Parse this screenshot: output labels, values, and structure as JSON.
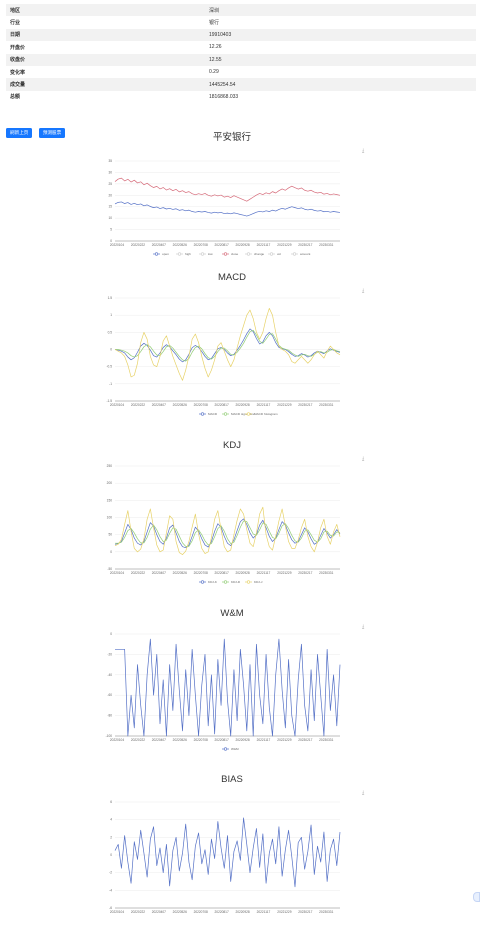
{
  "info": {
    "rows": [
      {
        "key": "地区",
        "value": "深圳"
      },
      {
        "key": "行业",
        "value": "银行"
      },
      {
        "key": "日期",
        "value": "19910403"
      },
      {
        "key": "开盘价",
        "value": "12.26"
      },
      {
        "key": "收盘价",
        "value": "12.55"
      },
      {
        "key": "变化率",
        "value": "0.29"
      },
      {
        "key": "成交量",
        "value": "1445254.54"
      },
      {
        "key": "总额",
        "value": "1816868.033"
      }
    ]
  },
  "buttons": {
    "left": "刷新上页",
    "right": "预测股票"
  },
  "toolbox_icon": "download-icon",
  "colors": {
    "blue": "#5470c6",
    "red": "#d66b7a",
    "yellow": "#e7d269",
    "green": "#91cc75",
    "orange": "#f2b65a",
    "button": "#1677ff"
  },
  "x_ticks": [
    "20220104",
    "20220222",
    "20220407",
    "20220526",
    "20220708",
    "20220817",
    "20220928",
    "20221117",
    "20221229",
    "20230217",
    "20230331"
  ],
  "chart_data": [
    {
      "type": "line",
      "title": "平安银行",
      "ylim": [
        0,
        35
      ],
      "yticks": [
        "0",
        "5",
        "10",
        "15",
        "20",
        "25",
        "30",
        "35"
      ],
      "series": [
        {
          "name": "open",
          "color": "#5470c6",
          "values": [
            16.2,
            16.9,
            17.1,
            16.4,
            16.8,
            16.0,
            16.5,
            15.9,
            16.2,
            15.4,
            15.8,
            15.1,
            14.6,
            14.9,
            14.2,
            14.6,
            14.0,
            14.3,
            13.8,
            14.1,
            13.4,
            13.7,
            13.2,
            13.5,
            12.9,
            12.6,
            12.9,
            12.7,
            12.9,
            12.5,
            12.2,
            12.6,
            12.3,
            12.5,
            12.0,
            12.2,
            11.9,
            12.3,
            12.0,
            11.6,
            11.3,
            10.9,
            11.4,
            12.0,
            12.6,
            13.0,
            12.7,
            13.2,
            12.9,
            13.5,
            13.1,
            13.8,
            14.3,
            13.9,
            14.5,
            15.0,
            14.6,
            14.2,
            14.5,
            13.9,
            13.6,
            13.9,
            13.4,
            13.1,
            13.3,
            12.8,
            13.0,
            12.6,
            12.9,
            12.7,
            12.5
          ]
        },
        {
          "name": "high",
          "color": "#91cc75",
          "values": []
        },
        {
          "name": "low",
          "color": "#e7d269",
          "values": []
        },
        {
          "name": "close",
          "color": "#d66b7a",
          "values": [
            26.0,
            27.1,
            27.5,
            26.3,
            27.0,
            25.8,
            26.6,
            25.4,
            25.9,
            24.6,
            25.3,
            24.2,
            23.4,
            23.9,
            22.8,
            23.4,
            22.3,
            22.9,
            22.0,
            22.6,
            21.5,
            22.0,
            21.2,
            21.6,
            20.7,
            20.2,
            20.7,
            20.3,
            20.8,
            20.0,
            19.6,
            20.2,
            19.7,
            20.1,
            19.2,
            19.6,
            19.0,
            19.8,
            19.2,
            18.6,
            18.0,
            17.4,
            18.3,
            19.2,
            20.1,
            20.8,
            20.3,
            21.1,
            20.6,
            21.6,
            21.0,
            22.0,
            22.8,
            22.2,
            23.2,
            24.0,
            23.3,
            22.7,
            23.2,
            22.2,
            21.8,
            22.2,
            21.4,
            21.0,
            21.3,
            20.5,
            20.8,
            20.2,
            20.6,
            20.3,
            20.0
          ]
        },
        {
          "name": "change",
          "color": "#73c0de",
          "values": []
        },
        {
          "name": "vol",
          "color": "#3ba272",
          "values": []
        },
        {
          "name": "amount",
          "color": "#fc8452",
          "values": []
        }
      ]
    },
    {
      "type": "line",
      "title": "MACD",
      "ylim": [
        -1.5,
        1.5
      ],
      "yticks": [
        "-1.5",
        "-1",
        "-0.5",
        "0",
        "0.5",
        "1",
        "1.5"
      ],
      "series": [
        {
          "name": "MACD",
          "color": "#5470c6",
          "values": [
            0,
            -0.02,
            -0.05,
            -0.1,
            -0.22,
            -0.3,
            -0.24,
            -0.08,
            0.1,
            0.18,
            0.12,
            -0.02,
            -0.18,
            -0.22,
            -0.1,
            0.06,
            0.14,
            0.08,
            -0.04,
            -0.15,
            -0.28,
            -0.36,
            -0.3,
            -0.14,
            0.05,
            0.12,
            0.06,
            -0.06,
            -0.2,
            -0.3,
            -0.26,
            -0.12,
            0.02,
            0.06,
            0.0,
            -0.1,
            -0.18,
            -0.14,
            -0.02,
            0.12,
            0.28,
            0.46,
            0.6,
            0.52,
            0.32,
            0.16,
            0.22,
            0.4,
            0.5,
            0.4,
            0.2,
            0.06,
            0.02,
            0.0,
            -0.06,
            -0.14,
            -0.2,
            -0.18,
            -0.12,
            -0.16,
            -0.22,
            -0.18,
            -0.1,
            -0.05,
            -0.08,
            -0.12,
            -0.04,
            0.02,
            -0.02,
            -0.06,
            -0.08
          ]
        },
        {
          "name": "MACD signal line",
          "color": "#91cc75",
          "values": [
            0,
            0,
            -0.02,
            -0.05,
            -0.1,
            -0.18,
            -0.22,
            -0.18,
            -0.06,
            0.08,
            0.14,
            0.08,
            -0.05,
            -0.16,
            -0.18,
            -0.06,
            0.08,
            0.12,
            0.04,
            -0.08,
            -0.2,
            -0.3,
            -0.34,
            -0.26,
            -0.08,
            0.06,
            0.1,
            0.02,
            -0.12,
            -0.24,
            -0.28,
            -0.2,
            -0.06,
            0.04,
            0.04,
            -0.04,
            -0.14,
            -0.16,
            -0.08,
            0.04,
            0.18,
            0.36,
            0.52,
            0.56,
            0.42,
            0.24,
            0.18,
            0.3,
            0.44,
            0.46,
            0.3,
            0.12,
            0.04,
            0.01,
            -0.02,
            -0.1,
            -0.16,
            -0.2,
            -0.16,
            -0.14,
            -0.18,
            -0.2,
            -0.14,
            -0.08,
            -0.06,
            -0.1,
            -0.08,
            -0.02,
            0.0,
            -0.04,
            -0.06
          ]
        },
        {
          "name": "MACD histogram",
          "color": "#e7d269",
          "values": [
            0,
            -0.05,
            -0.1,
            -0.2,
            -0.45,
            -0.8,
            -0.75,
            -0.4,
            0.2,
            0.5,
            0.3,
            -0.2,
            -0.45,
            -0.5,
            -0.2,
            0.25,
            0.4,
            0.1,
            -0.2,
            -0.45,
            -0.7,
            -0.9,
            -0.6,
            -0.2,
            0.3,
            0.45,
            0.2,
            -0.2,
            -0.55,
            -0.8,
            -0.6,
            -0.3,
            0.1,
            0.2,
            -0.05,
            -0.3,
            -0.5,
            -0.3,
            0.05,
            0.4,
            0.7,
            1.0,
            1.15,
            0.9,
            0.5,
            0.3,
            0.5,
            0.9,
            1.2,
            1.0,
            0.5,
            0.1,
            0.0,
            -0.05,
            -0.15,
            -0.35,
            -0.4,
            -0.3,
            -0.2,
            -0.3,
            -0.4,
            -0.3,
            -0.15,
            -0.05,
            -0.15,
            -0.25,
            -0.05,
            0.1,
            0.0,
            -0.1,
            -0.15
          ]
        }
      ]
    },
    {
      "type": "line",
      "title": "KDJ",
      "ylim": [
        -50,
        250
      ],
      "yticks": [
        "-50",
        "0",
        "50",
        "100",
        "150",
        "200",
        "250"
      ],
      "series": [
        {
          "name": "KDJ-K",
          "color": "#5470c6",
          "values": [
            22,
            24,
            30,
            55,
            80,
            65,
            40,
            25,
            20,
            30,
            58,
            85,
            75,
            50,
            30,
            22,
            40,
            70,
            78,
            55,
            30,
            15,
            12,
            20,
            45,
            72,
            60,
            38,
            20,
            14,
            30,
            60,
            82,
            72,
            45,
            25,
            18,
            35,
            62,
            88,
            96,
            80,
            55,
            40,
            50,
            78,
            92,
            70,
            45,
            30,
            40,
            65,
            88,
            78,
            55,
            35,
            25,
            30,
            50,
            70,
            58,
            38,
            22,
            28,
            48,
            68,
            55,
            40,
            50,
            65,
            52
          ]
        },
        {
          "name": "KDJ-D",
          "color": "#91cc75",
          "values": [
            25,
            25,
            28,
            42,
            62,
            68,
            55,
            38,
            26,
            26,
            42,
            66,
            78,
            64,
            44,
            30,
            34,
            54,
            70,
            66,
            46,
            26,
            16,
            16,
            32,
            56,
            64,
            50,
            32,
            20,
            24,
            44,
            68,
            76,
            60,
            38,
            24,
            28,
            48,
            72,
            90,
            88,
            70,
            52,
            48,
            64,
            84,
            80,
            60,
            42,
            38,
            54,
            76,
            82,
            68,
            48,
            32,
            28,
            40,
            60,
            64,
            50,
            34,
            28,
            38,
            58,
            60,
            48,
            46,
            58,
            56
          ]
        },
        {
          "name": "KDJ-J",
          "color": "#e7d269",
          "values": [
            18,
            22,
            36,
            80,
            120,
            60,
            10,
            0,
            8,
            38,
            95,
            125,
            70,
            20,
            0,
            5,
            55,
            105,
            95,
            30,
            -2,
            -8,
            2,
            30,
            72,
            110,
            52,
            10,
            -5,
            0,
            42,
            95,
            120,
            65,
            15,
            0,
            5,
            50,
            92,
            125,
            110,
            65,
            25,
            15,
            55,
            110,
            130,
            50,
            15,
            5,
            45,
            90,
            125,
            75,
            30,
            10,
            10,
            35,
            70,
            95,
            45,
            15,
            0,
            28,
            70,
            95,
            45,
            22,
            58,
            80,
            44
          ]
        }
      ]
    },
    {
      "type": "line",
      "title": "W&M",
      "ylim": [
        -100,
        0
      ],
      "yticks": [
        "-100",
        "-80",
        "-60",
        "-40",
        "-20",
        "0"
      ],
      "series": [
        {
          "name": "W&M",
          "color": "#5470c6",
          "values": [
            -15,
            -15,
            -15,
            -15,
            -100,
            -60,
            -92,
            -30,
            -70,
            -100,
            -40,
            -5,
            -60,
            -20,
            -88,
            -45,
            -100,
            -30,
            -75,
            -10,
            -55,
            -95,
            -35,
            -80,
            -15,
            -60,
            -100,
            -50,
            -20,
            -90,
            -40,
            -98,
            -25,
            -70,
            -5,
            -65,
            -100,
            -35,
            -85,
            -15,
            -50,
            -95,
            -30,
            -100,
            -10,
            -60,
            -88,
            -20,
            -72,
            -100,
            -40,
            -5,
            -55,
            -92,
            -25,
            -80,
            -100,
            -45,
            -10,
            -70,
            -95,
            -35,
            -85,
            -20,
            -60,
            -100,
            -15,
            -75,
            -40,
            -90,
            -30
          ]
        }
      ]
    },
    {
      "type": "line",
      "title": "BIAS",
      "ylim": [
        -6,
        6
      ],
      "yticks": [
        "-6",
        "-4",
        "-2",
        "0",
        "2",
        "4",
        "6"
      ],
      "series": [
        {
          "name": "BIAS",
          "color": "#5470c6",
          "values": [
            0.5,
            1.2,
            -1.5,
            2.2,
            -0.8,
            -3.2,
            1.5,
            -0.5,
            2.8,
            0.2,
            -2.5,
            1.8,
            3.2,
            -1.2,
            0.8,
            -2.0,
            1.2,
            -3.5,
            0.5,
            2.0,
            -1.8,
            0.2,
            3.5,
            -0.8,
            -2.8,
            1.0,
            2.5,
            -1.0,
            0.6,
            -2.2,
            1.8,
            -0.4,
            3.8,
            0.8,
            -1.5,
            2.2,
            -3.0,
            0.4,
            1.6,
            -0.6,
            4.2,
            1.2,
            -2.0,
            0.8,
            3.0,
            -1.4,
            2.4,
            -3.2,
            0.2,
            1.8,
            -1.0,
            3.2,
            -2.4,
            0.6,
            2.8,
            -0.2,
            -3.6,
            1.4,
            2.0,
            -1.6,
            0.4,
            3.4,
            -2.2,
            1.0,
            -0.8,
            2.6,
            -3.0,
            0.6,
            1.8,
            -1.2,
            2.6
          ]
        }
      ]
    }
  ]
}
